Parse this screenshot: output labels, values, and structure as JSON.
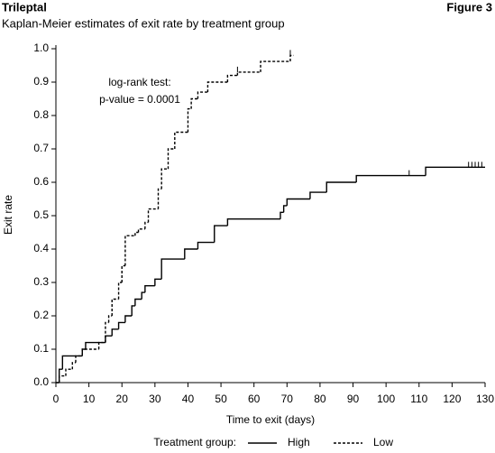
{
  "chart_data": {
    "type": "line",
    "step": "post",
    "title": "Trileptal",
    "figure_label": "Figure 3",
    "subtitle": "Kaplan-Meier estimates of exit rate by treatment group",
    "x_label": "Time to exit (days)",
    "y_label": "Exit rate",
    "annotation": [
      "log-rank test:",
      "p-value = 0.0001"
    ],
    "legend_title": "Treatment group:",
    "xlim": [
      0,
      130
    ],
    "xticks": [
      0,
      10,
      20,
      30,
      40,
      50,
      60,
      70,
      80,
      90,
      100,
      110,
      120,
      130
    ],
    "ylim": [
      0,
      1
    ],
    "yticks": [
      {
        "value": 0,
        "label": "0.0"
      },
      0.1,
      0.2,
      0.3,
      0.4,
      0.5,
      0.6,
      0.7,
      0.8,
      0.9,
      {
        "value": 1,
        "label": "1.0"
      }
    ],
    "series": [
      {
        "name": "High",
        "color": "#000000",
        "dash": false,
        "x": [
          0,
          1,
          2,
          8,
          9,
          15,
          17,
          19,
          21,
          23,
          24,
          26,
          27,
          30,
          32,
          39,
          43,
          48,
          52,
          68,
          69,
          70,
          77,
          82,
          91,
          112,
          130
        ],
        "values": [
          0,
          0.04,
          0.08,
          0.1,
          0.12,
          0.14,
          0.16,
          0.18,
          0.2,
          0.23,
          0.25,
          0.27,
          0.29,
          0.31,
          0.37,
          0.4,
          0.42,
          0.47,
          0.49,
          0.51,
          0.53,
          0.55,
          0.57,
          0.6,
          0.62,
          0.645,
          0.645
        ],
        "censored": [
          107,
          125,
          126,
          127,
          128,
          129
        ]
      },
      {
        "name": "Low",
        "color": "#000000",
        "dash": true,
        "x": [
          0,
          1,
          3,
          5,
          6,
          8,
          13,
          15,
          16,
          17,
          19,
          20,
          21,
          24,
          25,
          27,
          28,
          31,
          32,
          34,
          36,
          40,
          41,
          43,
          46,
          52,
          55,
          62,
          71,
          72
        ],
        "values": [
          0,
          0.02,
          0.04,
          0.06,
          0.08,
          0.1,
          0.12,
          0.18,
          0.2,
          0.25,
          0.3,
          0.35,
          0.44,
          0.45,
          0.46,
          0.48,
          0.52,
          0.58,
          0.64,
          0.7,
          0.75,
          0.82,
          0.85,
          0.87,
          0.9,
          0.92,
          0.93,
          0.962,
          0.98,
          0.98
        ],
        "censored": [
          55,
          71
        ]
      }
    ]
  }
}
